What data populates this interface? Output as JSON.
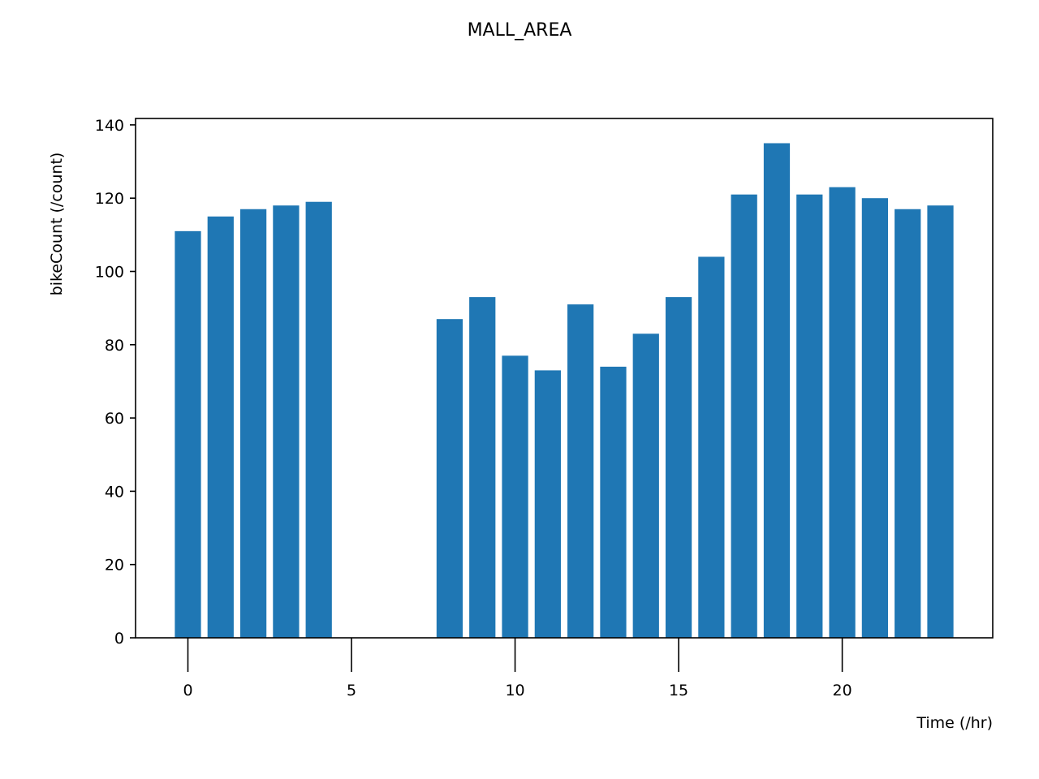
{
  "chart_data": {
    "type": "bar",
    "title": "MALL_AREA",
    "xlabel": "Time (/hr)",
    "ylabel": "bikeCount (/count)",
    "x": [
      0,
      1,
      2,
      3,
      4,
      8,
      9,
      10,
      11,
      12,
      13,
      14,
      15,
      16,
      17,
      18,
      19,
      20,
      21,
      22,
      23
    ],
    "values": [
      111,
      115,
      117,
      118,
      119,
      87,
      93,
      77,
      73,
      91,
      74,
      83,
      93,
      104,
      121,
      135,
      121,
      123,
      120,
      117,
      118
    ],
    "xlim": [
      -1.6,
      24.6
    ],
    "ylim": [
      0,
      141.75
    ],
    "xticks": [
      0,
      5,
      10,
      15,
      20
    ],
    "xtick_labels": [
      "0",
      "5",
      "10",
      "15",
      "20"
    ],
    "yticks": [
      0,
      20,
      40,
      60,
      80,
      100,
      120,
      140
    ],
    "ytick_labels": [
      "0",
      "20",
      "40",
      "60",
      "80",
      "100",
      "120",
      "140"
    ],
    "bar_color": "#1f77b4",
    "grid": false,
    "legend": null
  }
}
